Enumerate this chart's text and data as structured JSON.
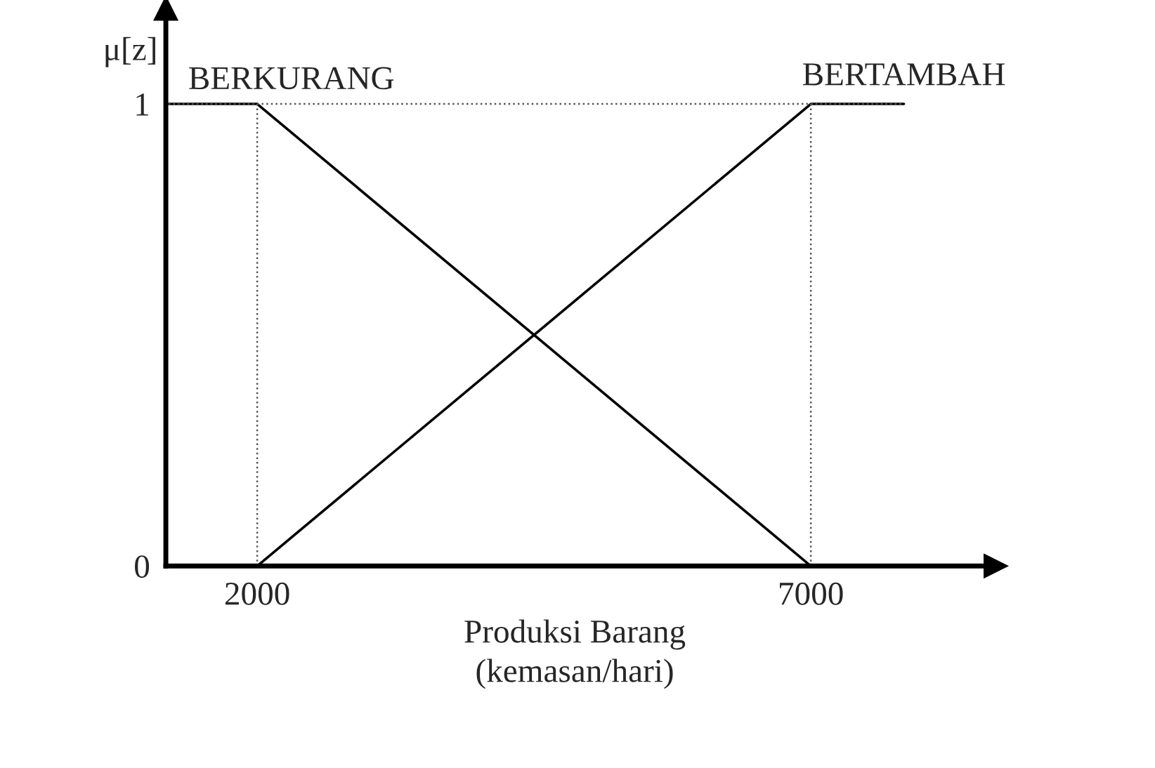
{
  "chart_data": {
    "type": "line",
    "xlabel": "Produksi Barang\n(kemasan/hari)",
    "ylabel": "μ[z]",
    "xlim": [
      1175,
      8560
    ],
    "ylim": [
      0,
      1.18
    ],
    "xticks": [
      2000,
      7000
    ],
    "yticks": [
      0,
      1
    ],
    "series": [
      {
        "name": "BERKURANG",
        "color": "#000000",
        "x": [
          1200,
          2000,
          7000
        ],
        "values": [
          1,
          1,
          0
        ]
      },
      {
        "name": "BERTAMBAH",
        "color": "#000000",
        "x": [
          2000,
          7000,
          7840
        ],
        "values": [
          0,
          1,
          1
        ]
      }
    ],
    "ref_lines": [
      {
        "axis": "x",
        "value": 2000,
        "line_style": "dotted",
        "color": "#555555"
      },
      {
        "axis": "x",
        "value": 7000,
        "line_style": "dotted",
        "color": "#555555"
      },
      {
        "axis": "y",
        "value": 1,
        "line_style": "dotted",
        "color": "#555555"
      }
    ],
    "grid": false,
    "legend": false,
    "marker": "none",
    "line_style": "solid"
  }
}
